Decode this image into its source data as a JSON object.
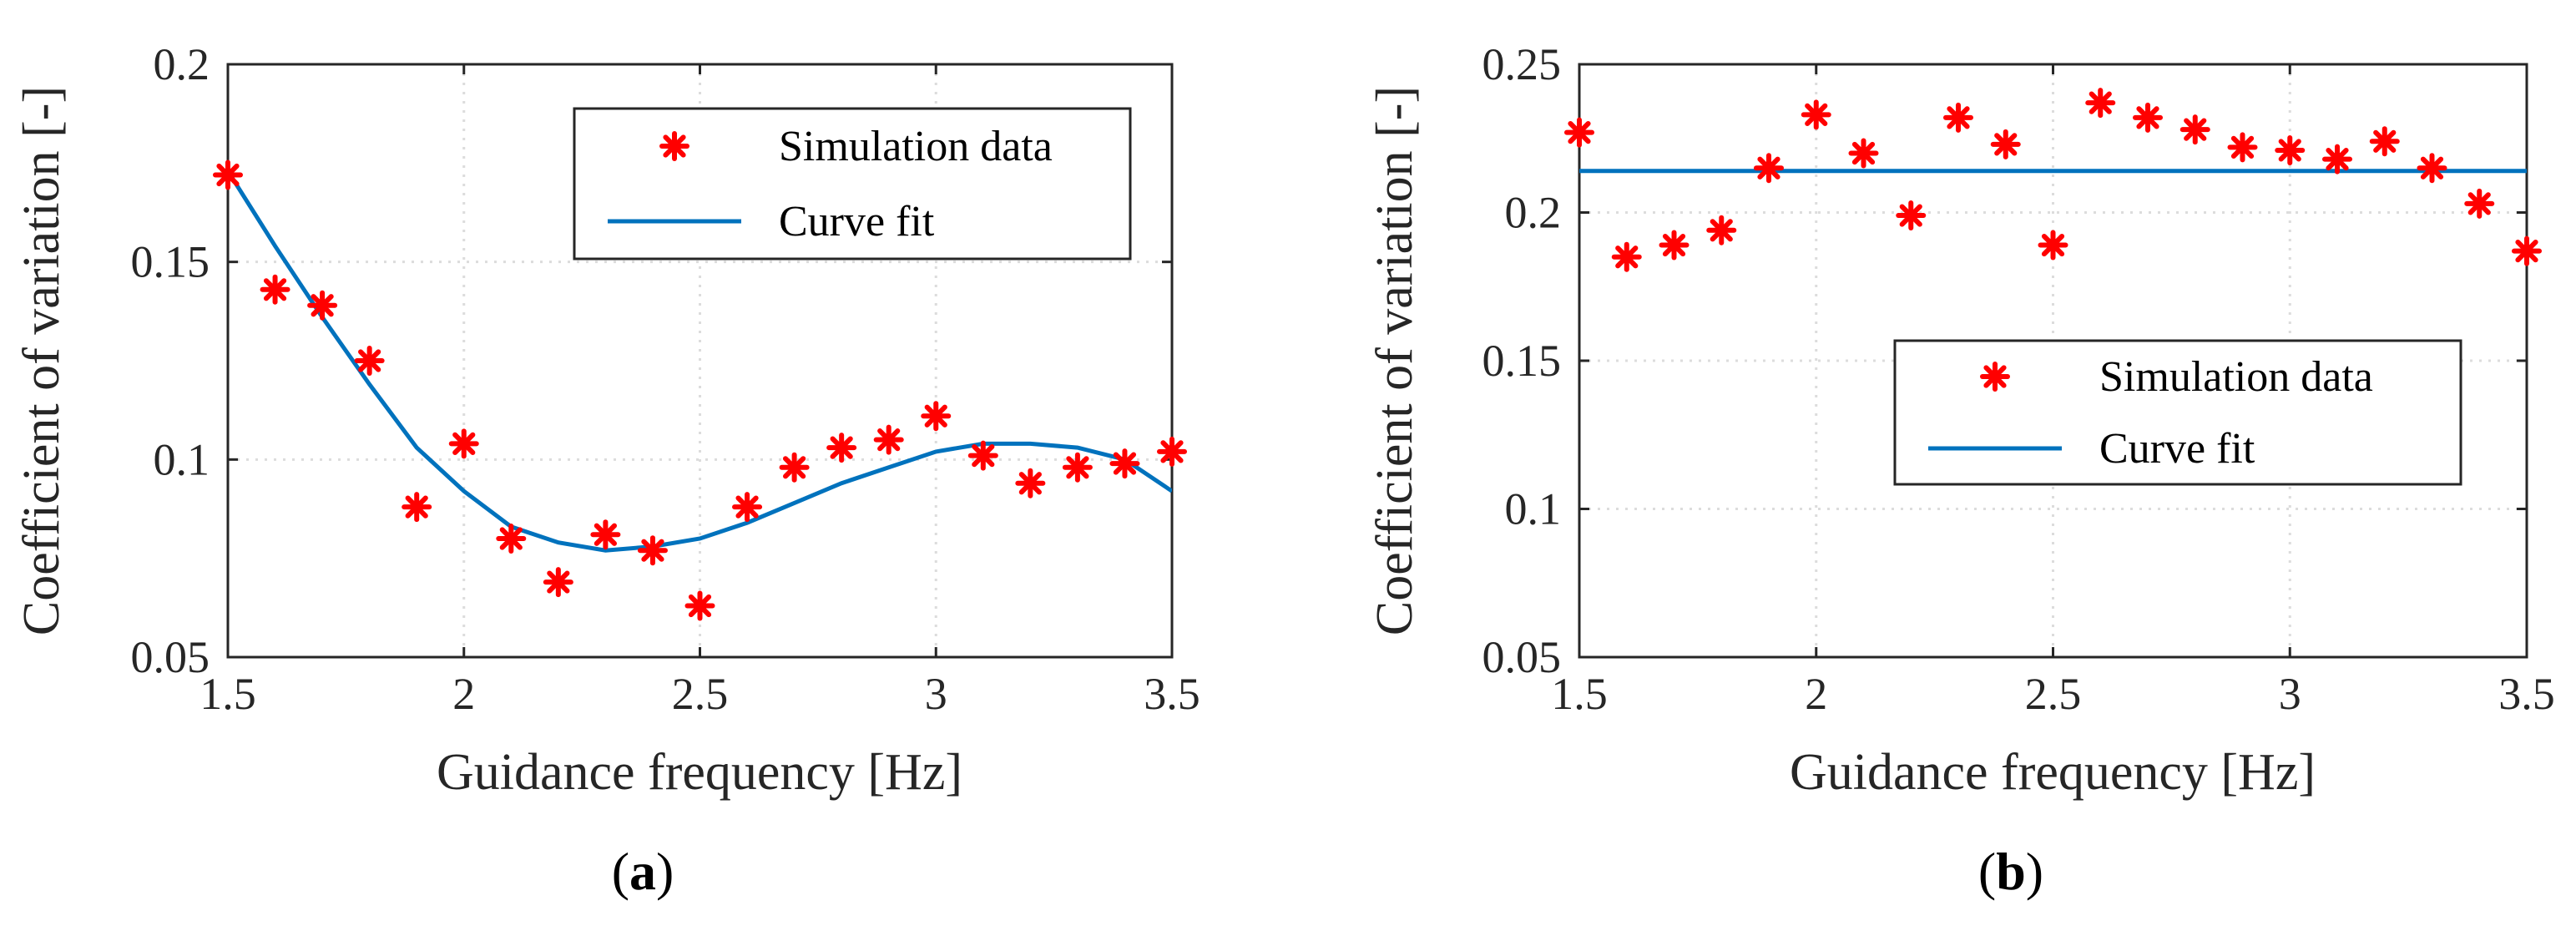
{
  "colors": {
    "marker": "#ff0000",
    "fit": "#0072bd",
    "axis": "#262626",
    "grid": "#dcdcdc"
  },
  "chart_data": [
    {
      "type": "scatter",
      "panel_label": "a",
      "xlabel": "Guidance frequency [Hz]",
      "ylabel": "Coefficient of variation [-]",
      "xlim": [
        1.5,
        3.5
      ],
      "ylim": [
        0.05,
        0.2
      ],
      "xticks": [
        1.5,
        2,
        2.5,
        3,
        3.5
      ],
      "yticks": [
        0.05,
        0.1,
        0.15,
        0.2
      ],
      "grid": true,
      "legend_position": "top-right",
      "series": [
        {
          "name": "Simulation data",
          "marker": "asterisk",
          "x": [
            1.5,
            1.6,
            1.7,
            1.8,
            1.9,
            2.0,
            2.1,
            2.2,
            2.3,
            2.4,
            2.5,
            2.6,
            2.7,
            2.8,
            2.9,
            3.0,
            3.1,
            3.2,
            3.3,
            3.4,
            3.5
          ],
          "y": [
            0.172,
            0.143,
            0.139,
            0.125,
            0.088,
            0.104,
            0.08,
            0.069,
            0.081,
            0.077,
            0.063,
            0.088,
            0.098,
            0.103,
            0.105,
            0.111,
            0.101,
            0.094,
            0.098,
            0.099,
            0.102
          ]
        },
        {
          "name": "Curve fit",
          "line": true,
          "x": [
            1.5,
            1.6,
            1.7,
            1.8,
            1.9,
            2.0,
            2.1,
            2.2,
            2.3,
            2.4,
            2.5,
            2.6,
            2.7,
            2.8,
            2.9,
            3.0,
            3.1,
            3.2,
            3.3,
            3.4,
            3.5
          ],
          "y": [
            0.173,
            0.154,
            0.136,
            0.119,
            0.103,
            0.092,
            0.083,
            0.079,
            0.077,
            0.078,
            0.08,
            0.084,
            0.089,
            0.094,
            0.098,
            0.102,
            0.104,
            0.104,
            0.103,
            0.1,
            0.092
          ]
        }
      ]
    },
    {
      "type": "scatter",
      "panel_label": "b",
      "xlabel": "Guidance frequency [Hz]",
      "ylabel": "Coefficient of variation [-]",
      "xlim": [
        1.5,
        3.5
      ],
      "ylim": [
        0.05,
        0.25
      ],
      "xticks": [
        1.5,
        2,
        2.5,
        3,
        3.5
      ],
      "yticks": [
        0.05,
        0.1,
        0.15,
        0.2,
        0.25
      ],
      "grid": true,
      "legend_position": "center-right",
      "series": [
        {
          "name": "Simulation data",
          "marker": "asterisk",
          "x": [
            1.5,
            1.6,
            1.7,
            1.8,
            1.9,
            2.0,
            2.1,
            2.2,
            2.3,
            2.4,
            2.5,
            2.6,
            2.7,
            2.8,
            2.9,
            3.0,
            3.1,
            3.2,
            3.3,
            3.4,
            3.5
          ],
          "y": [
            0.227,
            0.185,
            0.189,
            0.194,
            0.215,
            0.233,
            0.22,
            0.199,
            0.232,
            0.223,
            0.189,
            0.237,
            0.232,
            0.228,
            0.222,
            0.221,
            0.218,
            0.224,
            0.215,
            0.203,
            0.187
          ]
        },
        {
          "name": "Curve fit",
          "line": true,
          "x": [
            1.5,
            3.5
          ],
          "y": [
            0.214,
            0.214
          ]
        }
      ]
    }
  ]
}
